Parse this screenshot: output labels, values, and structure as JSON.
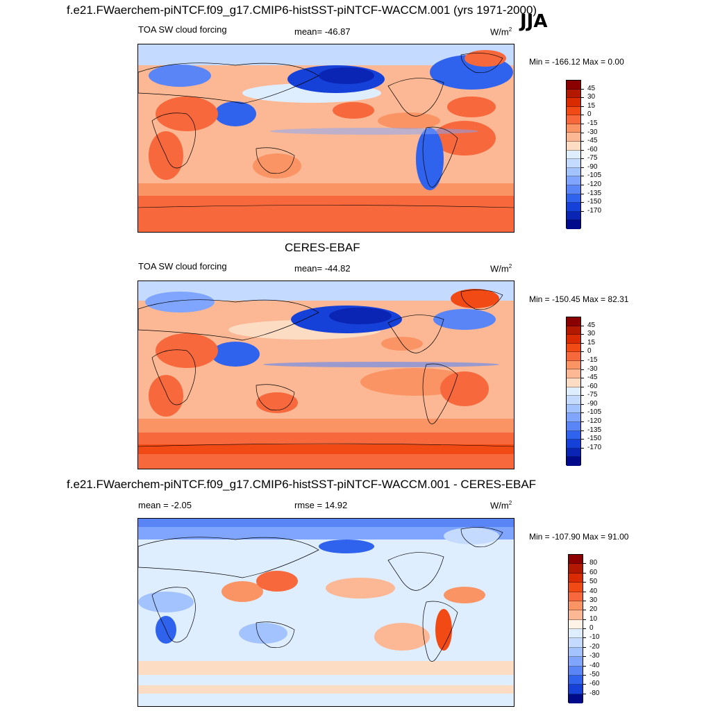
{
  "header": {
    "case_title": "f.e21.FWaerchem-piNTCF.f09_g17.CMIP6-histSST-piNTCF-WACCM.001 (yrs 1971-2000)",
    "season": "JJA"
  },
  "panels": [
    {
      "id": "model",
      "title": "",
      "left_label": "TOA SW cloud forcing",
      "center_label": "mean= -46.87",
      "units": "W/m",
      "units_sup": "2",
      "minmax": "Min = -166.12 Max =   0.00",
      "mean": -46.87,
      "min": -166.12,
      "max": 0.0,
      "colorbar": {
        "labels": [
          "45",
          "30",
          "15",
          "0",
          "-15",
          "-30",
          "-45",
          "-60",
          "-75",
          "-90",
          "-105",
          "-120",
          "-135",
          "-150",
          "-170"
        ],
        "colors": [
          "#8b0000",
          "#b31800",
          "#d92a00",
          "#f24a14",
          "#f7693c",
          "#fa9464",
          "#fcb894",
          "#fddcc4",
          "#dfeeff",
          "#c4daff",
          "#a3c3ff",
          "#7fa5ff",
          "#5985f7",
          "#3063ed",
          "#1541d9",
          "#0a24b3",
          "#000a8a"
        ]
      }
    },
    {
      "id": "obs",
      "title": "CERES-EBAF",
      "left_label": "TOA SW cloud forcing",
      "center_label": "mean= -44.82",
      "units": "W/m",
      "units_sup": "2",
      "minmax": "Min = -150.45 Max =  82.31",
      "mean": -44.82,
      "min": -150.45,
      "max": 82.31,
      "colorbar": {
        "labels": [
          "45",
          "30",
          "15",
          "0",
          "-15",
          "-30",
          "-45",
          "-60",
          "-75",
          "-90",
          "-105",
          "-120",
          "-135",
          "-150",
          "-170"
        ],
        "colors": [
          "#8b0000",
          "#b31800",
          "#d92a00",
          "#f24a14",
          "#f7693c",
          "#fa9464",
          "#fcb894",
          "#fddcc4",
          "#dfeeff",
          "#c4daff",
          "#a3c3ff",
          "#7fa5ff",
          "#5985f7",
          "#3063ed",
          "#1541d9",
          "#0a24b3",
          "#000a8a"
        ]
      }
    },
    {
      "id": "diff",
      "title": "f.e21.FWaerchem-piNTCF.f09_g17.CMIP6-histSST-piNTCF-WACCM.001 - CERES-EBAF",
      "left_label": "mean =  -2.05",
      "center_label": "rmse =  14.92",
      "units": "W/m",
      "units_sup": "2",
      "minmax": "Min = -107.90 Max =  91.00",
      "mean": -2.05,
      "rmse": 14.92,
      "min": -107.9,
      "max": 91.0,
      "colorbar": {
        "labels": [
          "80",
          "60",
          "50",
          "40",
          "30",
          "20",
          "10",
          "0",
          "-10",
          "-20",
          "-30",
          "-40",
          "-50",
          "-60",
          "-80"
        ],
        "colors": [
          "#8b0000",
          "#b31800",
          "#d92a00",
          "#f24a14",
          "#f7693c",
          "#fa9464",
          "#fcb894",
          "#fff2e6",
          "#dfeeff",
          "#c4daff",
          "#a3c3ff",
          "#7fa5ff",
          "#5985f7",
          "#3063ed",
          "#1541d9",
          "#000a8a"
        ]
      }
    }
  ]
}
